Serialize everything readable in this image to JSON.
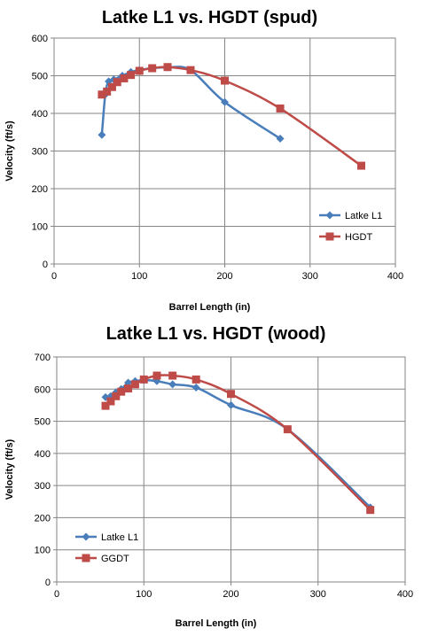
{
  "chart_data": [
    {
      "type": "line",
      "title": "Latke L1 vs. HGDT (spud)",
      "xlabel": "Barrel Length (in)",
      "ylabel": "Velocity (ft/s)",
      "xlim": [
        0,
        400
      ],
      "ylim": [
        0,
        600
      ],
      "xticks": [
        0,
        100,
        200,
        300,
        400
      ],
      "yticks": [
        0,
        100,
        200,
        300,
        400,
        500,
        600
      ],
      "grid": true,
      "legend_position": "bottom-right",
      "series": [
        {
          "name": "Latke L1",
          "color": "#4A7EBB",
          "marker": "diamond",
          "x": [
            56,
            60,
            64,
            70,
            80,
            90,
            100,
            115,
            133,
            160,
            200,
            265
          ],
          "y": [
            343,
            450,
            485,
            490,
            500,
            510,
            515,
            520,
            522,
            515,
            430,
            333
          ]
        },
        {
          "name": "HGDT",
          "color": "#BE4B48",
          "marker": "square",
          "x": [
            56,
            62,
            68,
            74,
            82,
            90,
            100,
            115,
            133,
            160,
            200,
            265,
            360
          ],
          "y": [
            450,
            458,
            470,
            483,
            493,
            502,
            513,
            520,
            523,
            515,
            487,
            413,
            261
          ]
        }
      ]
    },
    {
      "type": "line",
      "title": "Latke L1 vs. HGDT (wood)",
      "xlabel": "Barrel Length (in)",
      "ylabel": "Velocity (ft/s)",
      "xlim": [
        0,
        400
      ],
      "ylim": [
        0,
        700
      ],
      "xticks": [
        0,
        100,
        200,
        300,
        400
      ],
      "yticks": [
        0,
        100,
        200,
        300,
        400,
        500,
        600,
        700
      ],
      "grid": true,
      "legend_position": "bottom-left",
      "series": [
        {
          "name": "Latke L1",
          "color": "#4A7EBB",
          "marker": "diamond",
          "x": [
            56,
            62,
            68,
            74,
            82,
            90,
            100,
            115,
            133,
            160,
            200,
            265,
            360
          ],
          "y": [
            575,
            578,
            590,
            600,
            620,
            625,
            628,
            625,
            615,
            605,
            550,
            475,
            232
          ]
        },
        {
          "name": "GGDT",
          "color": "#BE4B48",
          "marker": "square",
          "x": [
            56,
            62,
            68,
            74,
            82,
            90,
            100,
            115,
            133,
            160,
            200,
            265,
            360
          ],
          "y": [
            548,
            562,
            578,
            592,
            602,
            615,
            630,
            642,
            642,
            630,
            585,
            475,
            224
          ]
        }
      ]
    }
  ]
}
